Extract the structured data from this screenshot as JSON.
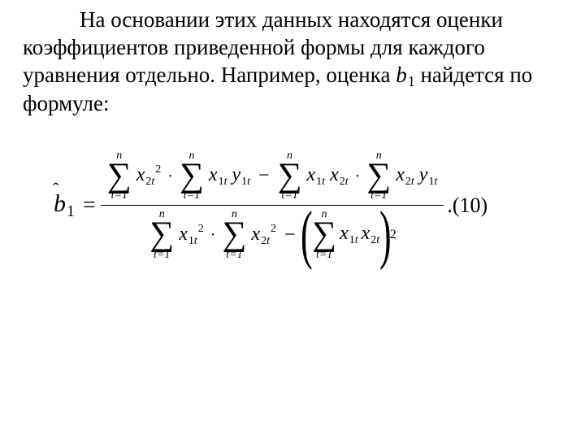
{
  "text": {
    "p_before_coef": "На основании этих данных находятся оценки коэффициентов приведенной формы для каждого уравнения отдельно. Например, оценка ",
    "p_after_coef": " найдется по формуле:"
  },
  "coef": {
    "symbol": "b",
    "subscript": "1"
  },
  "formula": {
    "eq_number": "10",
    "lhs": {
      "symbol": "b",
      "subscript": "1",
      "hat": "ˆ"
    },
    "sum_lower_index": "t",
    "sum_lower_start": "1",
    "sum_upper": "n",
    "numerator": [
      {
        "type": "sum_term",
        "base": "x",
        "sub": "2t",
        "sup": "2"
      },
      {
        "type": "dot"
      },
      {
        "type": "sum_term",
        "base1": "x",
        "sub1": "1t",
        "base2": "y",
        "sub2": "1t"
      },
      {
        "type": "minus"
      },
      {
        "type": "sum_term",
        "base1": "x",
        "sub1": "1t",
        "base2": "x",
        "sub2": "2t"
      },
      {
        "type": "dot"
      },
      {
        "type": "sum_term",
        "base1": "x",
        "sub1": "2t",
        "base2": "y",
        "sub2": "1t"
      }
    ],
    "denominator": {
      "left": [
        {
          "type": "sum_term",
          "base": "x",
          "sub": "1t",
          "sup": "2"
        },
        {
          "type": "dot"
        },
        {
          "type": "sum_term",
          "base": "x",
          "sub": "2t",
          "sup": "2"
        }
      ],
      "minus": true,
      "squared_sum": {
        "base1": "x",
        "sub1": "1t",
        "base2": "x",
        "sub2": "2t",
        "outer_power": "2"
      }
    },
    "text_color": "#000000",
    "background_color": "#ffffff",
    "font_family": "Times New Roman",
    "body_fontsize_pt": 20,
    "formula_fontsize_pt": 18
  }
}
